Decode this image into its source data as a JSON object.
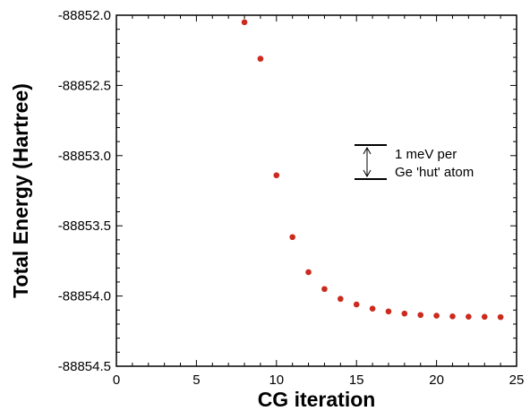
{
  "chart_data": {
    "type": "scatter",
    "xlabel": "CG iteration",
    "ylabel": "Total Energy (Hartree)",
    "xlim": [
      0,
      25
    ],
    "ylim": [
      -88854.5,
      -88852.0
    ],
    "x_ticks": [
      0,
      5,
      10,
      15,
      20,
      25
    ],
    "y_ticks": [
      -88852.0,
      -88852.5,
      -88853.0,
      -88853.5,
      -88854.0,
      -88854.5
    ],
    "x_tick_labels": [
      "0",
      "5",
      "10",
      "15",
      "20",
      "25"
    ],
    "y_tick_labels": [
      "-88852.0",
      "-88852.5",
      "-88853.0",
      "-88853.5",
      "-88854.0",
      "-88854.5"
    ],
    "grid": false,
    "marker_color": "#cc2a1e",
    "series": [
      {
        "x": [
          8,
          9,
          10,
          11,
          12,
          13,
          14,
          15,
          16,
          17,
          18,
          19,
          20,
          21,
          22,
          23,
          24
        ],
        "y": [
          -88852.05,
          -88852.31,
          -88853.14,
          -88853.58,
          -88853.83,
          -88853.95,
          -88854.02,
          -88854.06,
          -88854.09,
          -88854.11,
          -88854.125,
          -88854.135,
          -88854.14,
          -88854.145,
          -88854.147,
          -88854.148,
          -88854.15
        ]
      }
    ],
    "annotation": {
      "line1": "1 meV per",
      "line2": "Ge 'hut' atom"
    }
  }
}
